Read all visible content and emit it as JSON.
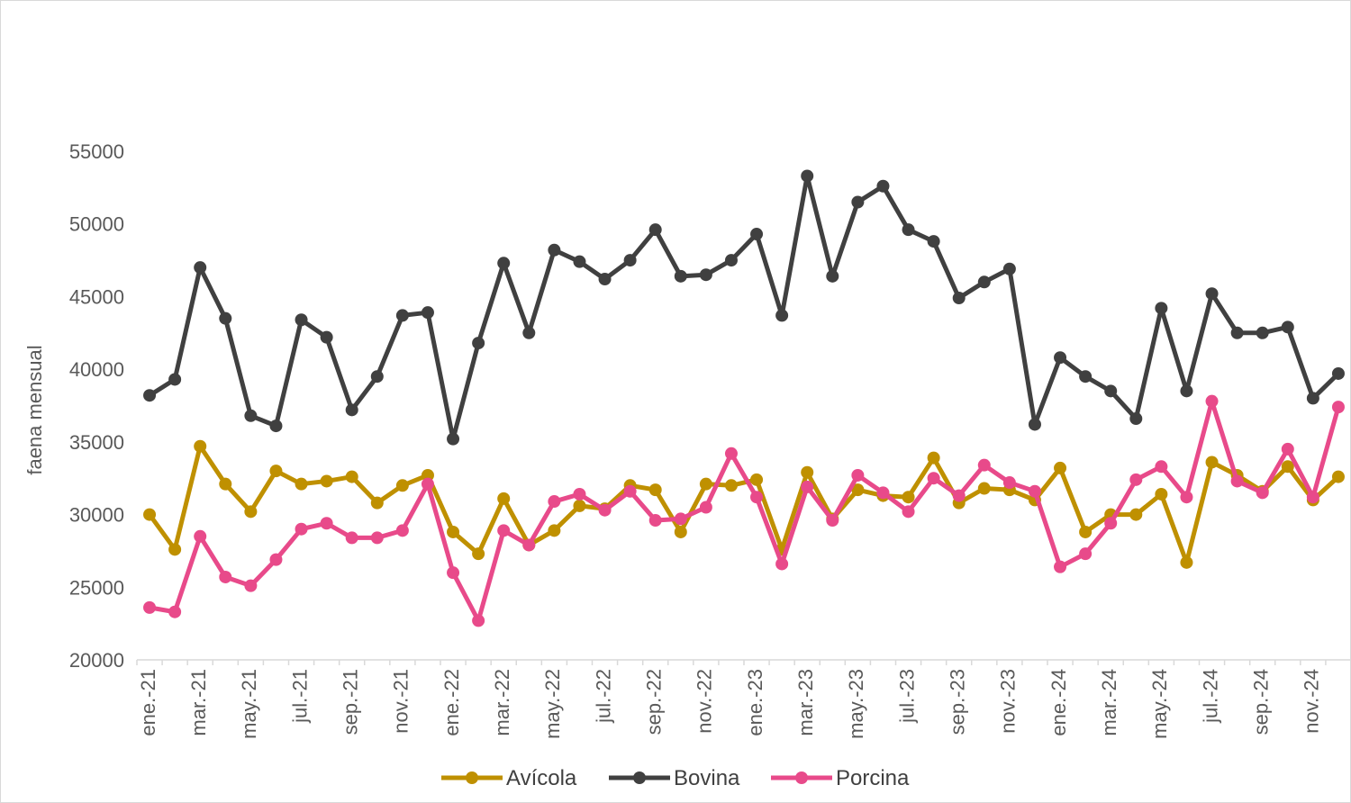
{
  "chart_data": {
    "type": "line",
    "title": "",
    "xlabel": "",
    "ylabel": "faena mensual",
    "ylim": [
      20000,
      55000
    ],
    "yticks": [
      20000,
      25000,
      30000,
      35000,
      40000,
      45000,
      50000,
      55000
    ],
    "grid": false,
    "legend_position": "bottom",
    "x": [
      "ene.-21",
      "feb.-21",
      "mar.-21",
      "abr.-21",
      "may.-21",
      "jun.-21",
      "jul.-21",
      "ago.-21",
      "sep.-21",
      "oct.-21",
      "nov.-21",
      "dic.-21",
      "ene.-22",
      "feb.-22",
      "mar.-22",
      "abr.-22",
      "may.-22",
      "jun.-22",
      "jul.-22",
      "ago.-22",
      "sep.-22",
      "oct.-22",
      "nov.-22",
      "dic.-22",
      "ene.-23",
      "feb.-23",
      "mar.-23",
      "abr.-23",
      "may.-23",
      "jun.-23",
      "jul.-23",
      "ago.-23",
      "sep.-23",
      "oct.-23",
      "nov.-23",
      "dic.-23",
      "ene.-24",
      "feb.-24",
      "mar.-24",
      "abr.-24",
      "may.-24",
      "jun.-24",
      "jul.-24",
      "ago.-24",
      "sep.-24",
      "oct.-24",
      "nov.-24",
      "dic.-24"
    ],
    "x_tick_labels": [
      "ene.-21",
      "mar.-21",
      "may.-21",
      "jul.-21",
      "sep.-21",
      "nov.-21",
      "ene.-22",
      "mar.-22",
      "may.-22",
      "jul.-22",
      "sep.-22",
      "nov.-22",
      "ene.-23",
      "mar.-23",
      "may.-23",
      "jul.-23",
      "sep.-23",
      "nov.-23",
      "ene.-24",
      "mar.-24",
      "may.-24",
      "jul.-24",
      "sep.-24",
      "nov.-24"
    ],
    "series": [
      {
        "name": "Avícola",
        "color": "#BF9000",
        "values": [
          30000,
          27600,
          34700,
          32100,
          30200,
          33000,
          32100,
          32300,
          32600,
          30800,
          32000,
          32700,
          28800,
          27300,
          31100,
          27900,
          28900,
          30600,
          30400,
          32000,
          31700,
          28800,
          32100,
          32000,
          32400,
          27600,
          32900,
          29700,
          31700,
          31300,
          31200,
          33900,
          30800,
          31800,
          31700,
          31000,
          33200,
          28800,
          30000,
          30000,
          31400,
          26700,
          33600,
          32700,
          31600,
          33300,
          31000,
          32600
        ]
      },
      {
        "name": "Bovina",
        "color": "#404040",
        "values": [
          38200,
          39300,
          47000,
          43500,
          36800,
          36100,
          43400,
          42200,
          37200,
          39500,
          43700,
          43900,
          35200,
          41800,
          47300,
          42500,
          48200,
          47400,
          46200,
          47500,
          49600,
          46400,
          46500,
          47500,
          49300,
          43700,
          53300,
          46400,
          51500,
          52600,
          49600,
          48800,
          44900,
          46000,
          46900,
          36200,
          40800,
          39500,
          38500,
          36600,
          44200,
          38500,
          45200,
          42500,
          42500,
          42900,
          38000,
          39700
        ]
      },
      {
        "name": "Porcina",
        "color": "#E84A8A",
        "values": [
          23600,
          23300,
          28500,
          25700,
          25100,
          26900,
          29000,
          29400,
          28400,
          28400,
          28900,
          32100,
          26000,
          22700,
          28900,
          27900,
          30900,
          31400,
          30300,
          31600,
          29600,
          29700,
          30500,
          34200,
          31200,
          26600,
          31900,
          29600,
          32700,
          31500,
          30200,
          32500,
          31300,
          33400,
          32200,
          31600,
          26400,
          27300,
          29400,
          32400,
          33300,
          31200,
          37800,
          32300,
          31500,
          34500,
          31200,
          37400
        ]
      }
    ]
  }
}
